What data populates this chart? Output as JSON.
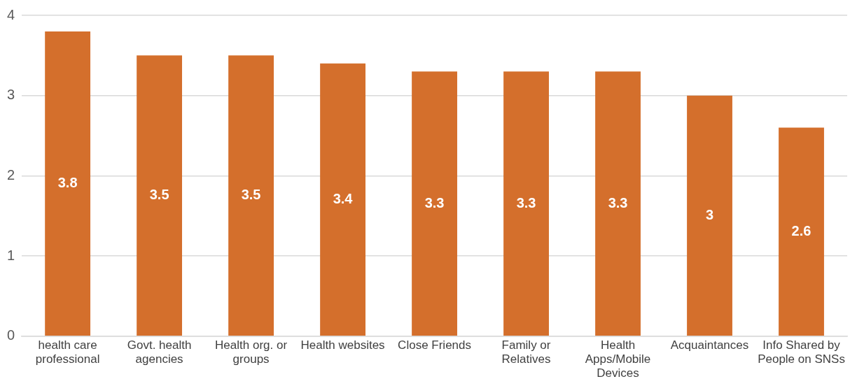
{
  "chart_data": {
    "type": "bar",
    "categories": [
      "health care professional",
      "Govt. health agencies",
      "Health org. or groups",
      "Health websites",
      "Close Friends",
      "Family or Relatives",
      "Health Apps/Mobile Devices",
      "Acquaintances",
      "Info Shared by People on SNSs"
    ],
    "values": [
      3.8,
      3.5,
      3.5,
      3.4,
      3.3,
      3.3,
      3.3,
      3,
      2.6
    ],
    "color": "#d46f2c",
    "ylim": [
      0,
      4
    ],
    "yticks": [
      0,
      1,
      2,
      3,
      4
    ],
    "grid": "y",
    "data_labels": true,
    "legend": false
  }
}
